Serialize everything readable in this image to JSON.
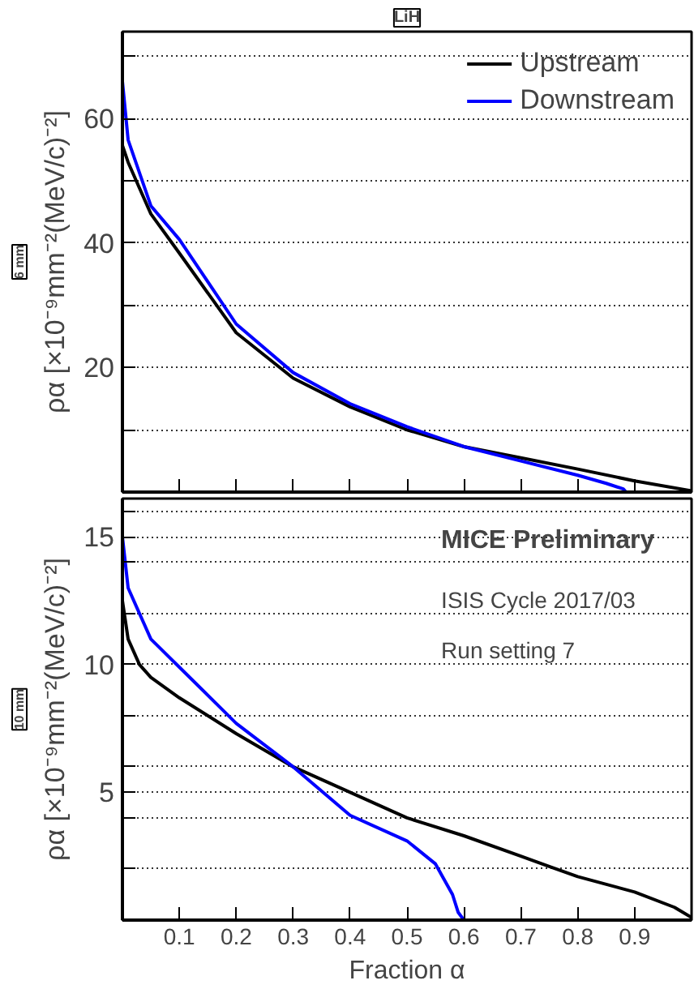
{
  "chart_data": [
    {
      "type": "line",
      "title": "LiH",
      "subtitle": "6 mm",
      "ylabel": "ρα [×10⁻⁹mm⁻²(MeV/c)⁻²]",
      "xlim": [
        0,
        1
      ],
      "xticks": [
        0.1,
        0.2,
        0.3,
        0.4,
        0.5,
        0.6,
        0.7,
        0.8,
        0.9
      ],
      "ylim": [
        0,
        74
      ],
      "yticks": [
        {
          "value": 10,
          "label": null
        },
        20,
        {
          "value": 30,
          "label": null
        },
        40,
        {
          "value": 50,
          "label": null
        },
        60,
        {
          "value": 70,
          "label": null
        }
      ],
      "tick_labels": "y",
      "grid": "y",
      "legend": "top right",
      "line_style": "solid",
      "series": [
        {
          "name": "Upstream",
          "color": "#000000",
          "x": [
            0,
            0.01,
            0.05,
            0.1,
            0.2,
            0.3,
            0.4,
            0.5,
            0.6,
            0.7,
            0.8,
            0.9,
            1.0
          ],
          "values": [
            55.7,
            53,
            44.7,
            38.4,
            25.6,
            18.3,
            13.7,
            10,
            7.3,
            5.5,
            3.7,
            1.8,
            0.2
          ]
        },
        {
          "name": "Downstream",
          "color": "#0000ff",
          "x": [
            0,
            0.01,
            0.05,
            0.1,
            0.2,
            0.3,
            0.4,
            0.5,
            0.6,
            0.7,
            0.8,
            0.85,
            0.88,
            0.885
          ],
          "values": [
            66,
            56.6,
            46,
            40.6,
            27,
            19.2,
            14.2,
            10.5,
            7.3,
            5,
            2.7,
            1.4,
            0.5,
            0
          ]
        }
      ]
    },
    {
      "type": "line",
      "subtitle": "10 mm",
      "xlabel": "Fraction α",
      "ylabel": "ρα [×10⁻⁹mm⁻²(MeV/c)⁻²]",
      "xlim": [
        0,
        1
      ],
      "xticks": [
        0.1,
        0.2,
        0.3,
        0.4,
        0.5,
        0.6,
        0.7,
        0.8,
        0.9
      ],
      "ylim": [
        0,
        16.5
      ],
      "yticks": [
        {
          "value": 2,
          "label": null
        },
        {
          "value": 4,
          "label": null
        },
        5,
        {
          "value": 6,
          "label": null
        },
        {
          "value": 8,
          "label": null
        },
        10,
        {
          "value": 12,
          "label": null
        },
        {
          "value": 14,
          "label": null
        },
        15,
        {
          "value": 16,
          "label": null
        }
      ],
      "grid": "y",
      "line_style": "solid",
      "annotations": [
        "MICE Preliminary",
        "ISIS Cycle 2017/03",
        "Run setting 7"
      ],
      "series": [
        {
          "color": "#000000",
          "x": [
            0,
            0.01,
            0.03,
            0.05,
            0.1,
            0.2,
            0.3,
            0.4,
            0.5,
            0.6,
            0.7,
            0.75,
            0.8,
            0.9,
            0.97,
            1.0
          ],
          "values": [
            12.5,
            11,
            10,
            9.5,
            8.7,
            7.3,
            6.0,
            5.0,
            4.0,
            3.3,
            2.5,
            2.1,
            1.7,
            1.1,
            0.5,
            0.1
          ]
        },
        {
          "color": "#0000ff",
          "x": [
            0,
            0.01,
            0.03,
            0.05,
            0.1,
            0.15,
            0.2,
            0.3,
            0.4,
            0.5,
            0.55,
            0.58,
            0.59,
            0.6
          ],
          "values": [
            15,
            13,
            12,
            11,
            9.9,
            8.8,
            7.7,
            6.0,
            4.1,
            3.1,
            2.2,
            1.0,
            0.3,
            0
          ]
        }
      ]
    }
  ]
}
